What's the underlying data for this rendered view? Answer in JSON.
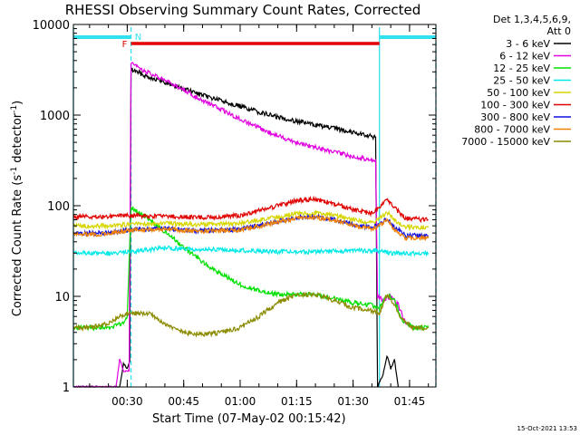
{
  "chart_data": {
    "type": "line",
    "title": "RHESSI Observing Summary Count Rates, Corrected",
    "xlabel": "Start Time (07-May-02 00:15:42)",
    "ylabel_main": "Corrected Count Rate (s",
    "ylabel_sup": "-1",
    "ylabel_tail": " detector",
    "ylabel_end": ")",
    "y_scale": "log",
    "ylim": [
      1,
      10000
    ],
    "xlim": [
      "00:15:42",
      "01:52:00"
    ],
    "x_ticks": [
      "00:30",
      "00:45",
      "01:00",
      "01:15",
      "01:30",
      "01:45"
    ],
    "y_ticks": [
      "1",
      "10",
      "100",
      "1000",
      "10000"
    ],
    "legend_header": [
      "Det 1,3,4,5,6,9,",
      "Att 0"
    ],
    "legend_placement": "right",
    "timestamp": "15-Oct-2021 13:53",
    "flag_labels": {
      "F": "F",
      "N": "N"
    },
    "flags": {
      "night": [
        [
          "00:15:42",
          "00:31:00"
        ],
        [
          "01:37:00",
          "01:52:00"
        ]
      ],
      "flare": [
        "00:31:00",
        "01:37:00"
      ]
    },
    "colors": {
      "night": "#33e1ee",
      "flare": "#e40000",
      "flare_label": "#e40000",
      "night_label": "#33e1ee",
      "axis": "#000000"
    },
    "series": [
      {
        "name": "3 - 6 keV",
        "color": "#000000",
        "points": [
          [
            "00:15:42",
            1.0
          ],
          [
            "00:28:00",
            1.0
          ],
          [
            "00:29:00",
            1.8
          ],
          [
            "00:30:00",
            1.6
          ],
          [
            "00:30:40",
            1.9
          ],
          [
            "00:31:00",
            3200
          ],
          [
            "00:35:00",
            2700
          ],
          [
            "00:40:00",
            2300
          ],
          [
            "00:45:00",
            1950
          ],
          [
            "00:50:00",
            1650
          ],
          [
            "00:55:00",
            1450
          ],
          [
            "01:00:00",
            1250
          ],
          [
            "01:05:00",
            1080
          ],
          [
            "01:10:00",
            950
          ],
          [
            "01:15:00",
            860
          ],
          [
            "01:20:00",
            780
          ],
          [
            "01:25:00",
            710
          ],
          [
            "01:30:00",
            650
          ],
          [
            "01:35:00",
            580
          ],
          [
            "01:36:00",
            560
          ],
          [
            "01:36:30",
            1.0
          ],
          [
            "01:38:00",
            1.4
          ],
          [
            "01:39:00",
            2.2
          ],
          [
            "01:40:00",
            1.6
          ],
          [
            "01:41:00",
            2.0
          ],
          [
            "01:42:00",
            1.0
          ]
        ]
      },
      {
        "name": "6 - 12 keV",
        "color": "#e000e0",
        "points": [
          [
            "00:15:42",
            1.0
          ],
          [
            "00:27:00",
            1.0
          ],
          [
            "00:28:00",
            2.0
          ],
          [
            "00:29:00",
            1.5
          ],
          [
            "00:30:30",
            1.5
          ],
          [
            "00:31:00",
            3700
          ],
          [
            "00:35:00",
            3000
          ],
          [
            "00:40:00",
            2400
          ],
          [
            "00:45:00",
            1900
          ],
          [
            "00:50:00",
            1450
          ],
          [
            "00:55:00",
            1150
          ],
          [
            "01:00:00",
            900
          ],
          [
            "01:05:00",
            720
          ],
          [
            "01:10:00",
            590
          ],
          [
            "01:15:00",
            500
          ],
          [
            "01:20:00",
            440
          ],
          [
            "01:25:00",
            390
          ],
          [
            "01:30:00",
            350
          ],
          [
            "01:35:00",
            320
          ],
          [
            "01:36:00",
            310
          ],
          [
            "01:36:30",
            10
          ],
          [
            "01:38:00",
            9
          ],
          [
            "01:40:00",
            10
          ],
          [
            "01:42:00",
            8
          ],
          [
            "01:44:00",
            5
          ],
          [
            "01:46:00",
            4.5
          ]
        ]
      },
      {
        "name": "12 - 25 keV",
        "color": "#00e000",
        "points": [
          [
            "00:15:42",
            4.5
          ],
          [
            "00:25:00",
            4.5
          ],
          [
            "00:29:00",
            5.0
          ],
          [
            "00:30:00",
            6.0
          ],
          [
            "00:31:00",
            95
          ],
          [
            "00:33:00",
            85
          ],
          [
            "00:36:00",
            70
          ],
          [
            "00:40:00",
            52
          ],
          [
            "00:45:00",
            35
          ],
          [
            "00:50:00",
            24
          ],
          [
            "00:55:00",
            17.5
          ],
          [
            "01:00:00",
            13.5
          ],
          [
            "01:05:00",
            11.5
          ],
          [
            "01:10:00",
            10.5
          ],
          [
            "01:15:00",
            10.5
          ],
          [
            "01:20:00",
            10.5
          ],
          [
            "01:25:00",
            9.5
          ],
          [
            "01:30:00",
            8.5
          ],
          [
            "01:35:00",
            8.0
          ],
          [
            "01:37:00",
            7.5
          ],
          [
            "01:39:00",
            10.5
          ],
          [
            "01:41:00",
            9.0
          ],
          [
            "01:43:00",
            5.5
          ],
          [
            "01:46:00",
            4.5
          ],
          [
            "01:50:00",
            4.5
          ]
        ]
      },
      {
        "name": "25 - 50 keV",
        "color": "#00e8e8",
        "points": [
          [
            "00:15:42",
            30
          ],
          [
            "00:25:00",
            30
          ],
          [
            "00:30:00",
            31
          ],
          [
            "00:40:00",
            34
          ],
          [
            "00:50:00",
            33
          ],
          [
            "01:00:00",
            32
          ],
          [
            "01:10:00",
            31
          ],
          [
            "01:20:00",
            31
          ],
          [
            "01:30:00",
            32
          ],
          [
            "01:36:00",
            32
          ],
          [
            "01:38:00",
            31
          ],
          [
            "01:40:00",
            30
          ],
          [
            "01:45:00",
            30
          ],
          [
            "01:50:00",
            30
          ]
        ]
      },
      {
        "name": "50 - 100 keV",
        "color": "#d6d600",
        "points": [
          [
            "00:15:42",
            60
          ],
          [
            "00:25:00",
            60
          ],
          [
            "00:30:00",
            62
          ],
          [
            "00:40:00",
            64
          ],
          [
            "00:50:00",
            62
          ],
          [
            "01:00:00",
            64
          ],
          [
            "01:10:00",
            75
          ],
          [
            "01:15:00",
            82
          ],
          [
            "01:20:00",
            83
          ],
          [
            "01:25:00",
            78
          ],
          [
            "01:30:00",
            70
          ],
          [
            "01:35:00",
            65
          ],
          [
            "01:37:00",
            72
          ],
          [
            "01:39:00",
            85
          ],
          [
            "01:41:00",
            70
          ],
          [
            "01:44:00",
            58
          ],
          [
            "01:50:00",
            58
          ]
        ]
      },
      {
        "name": "100 - 300 keV",
        "color": "#e00000",
        "points": [
          [
            "00:15:42",
            75
          ],
          [
            "00:25:00",
            76
          ],
          [
            "00:30:00",
            78
          ],
          [
            "00:40:00",
            76
          ],
          [
            "00:50:00",
            74
          ],
          [
            "01:00:00",
            78
          ],
          [
            "01:10:00",
            100
          ],
          [
            "01:15:00",
            115
          ],
          [
            "01:20:00",
            118
          ],
          [
            "01:25:00",
            105
          ],
          [
            "01:30:00",
            90
          ],
          [
            "01:35:00",
            82
          ],
          [
            "01:37:00",
            95
          ],
          [
            "01:39:00",
            120
          ],
          [
            "01:41:00",
            95
          ],
          [
            "01:44:00",
            72
          ],
          [
            "01:50:00",
            70
          ]
        ]
      },
      {
        "name": "300 - 800 keV",
        "color": "#1010e0",
        "points": [
          [
            "00:15:42",
            50
          ],
          [
            "00:25:00",
            50
          ],
          [
            "00:30:00",
            54
          ],
          [
            "00:40:00",
            56
          ],
          [
            "00:50:00",
            53
          ],
          [
            "01:00:00",
            55
          ],
          [
            "01:10:00",
            67
          ],
          [
            "01:15:00",
            74
          ],
          [
            "01:20:00",
            75
          ],
          [
            "01:25:00",
            70
          ],
          [
            "01:30:00",
            62
          ],
          [
            "01:35:00",
            57
          ],
          [
            "01:37:00",
            62
          ],
          [
            "01:39:00",
            72
          ],
          [
            "01:41:00",
            58
          ],
          [
            "01:44:00",
            47
          ],
          [
            "01:50:00",
            47
          ]
        ]
      },
      {
        "name": "800 - 7000 keV",
        "color": "#f08000",
        "points": [
          [
            "00:15:42",
            48
          ],
          [
            "00:25:00",
            49
          ],
          [
            "00:30:00",
            53
          ],
          [
            "00:40:00",
            55
          ],
          [
            "00:50:00",
            52
          ],
          [
            "01:00:00",
            54
          ],
          [
            "01:10:00",
            66
          ],
          [
            "01:15:00",
            73
          ],
          [
            "01:20:00",
            74
          ],
          [
            "01:25:00",
            69
          ],
          [
            "01:30:00",
            61
          ],
          [
            "01:35:00",
            56
          ],
          [
            "01:37:00",
            60
          ],
          [
            "01:39:00",
            70
          ],
          [
            "01:41:00",
            55
          ],
          [
            "01:44:00",
            44
          ],
          [
            "01:50:00",
            44
          ]
        ]
      },
      {
        "name": "7000 - 15000 keV",
        "color": "#8b8b00",
        "points": [
          [
            "00:15:42",
            4.5
          ],
          [
            "00:20:00",
            4.5
          ],
          [
            "00:25:00",
            5.0
          ],
          [
            "00:28:00",
            6.0
          ],
          [
            "00:31:00",
            6.5
          ],
          [
            "00:36:00",
            6.5
          ],
          [
            "00:40:00",
            5.0
          ],
          [
            "00:45:00",
            4.0
          ],
          [
            "00:50:00",
            3.8
          ],
          [
            "00:55:00",
            4.0
          ],
          [
            "01:00:00",
            4.5
          ],
          [
            "01:05:00",
            6.0
          ],
          [
            "01:10:00",
            8.5
          ],
          [
            "01:15:00",
            10.5
          ],
          [
            "01:20:00",
            10.5
          ],
          [
            "01:25:00",
            9.0
          ],
          [
            "01:30:00",
            7.5
          ],
          [
            "01:35:00",
            7.0
          ],
          [
            "01:37:00",
            6.5
          ],
          [
            "01:39:00",
            10.5
          ],
          [
            "01:41:00",
            8.0
          ],
          [
            "01:43:00",
            5.5
          ],
          [
            "01:46:00",
            4.5
          ],
          [
            "01:50:00",
            4.5
          ]
        ]
      }
    ]
  }
}
